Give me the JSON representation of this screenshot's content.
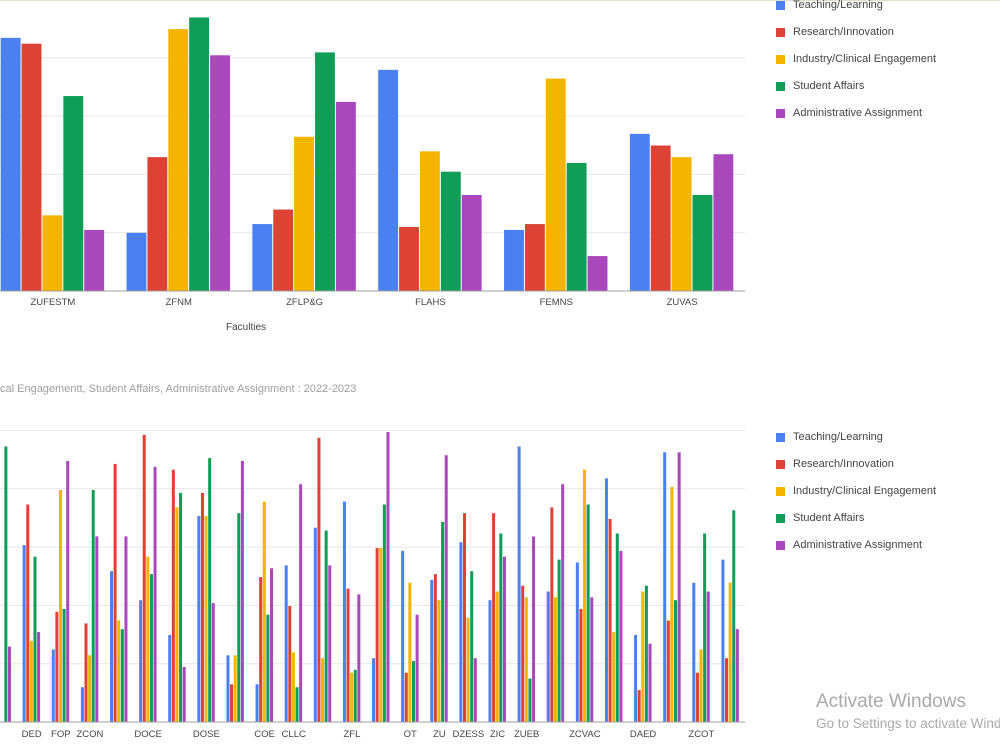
{
  "chart_data": [
    {
      "type": "bar",
      "title": "",
      "xlabel": "Faculties",
      "ylabel": "",
      "ylim": [
        0,
        100
      ],
      "grid": true,
      "legend_position": "right",
      "colors": [
        "#4a80f0",
        "#dc4335",
        "#f4b400",
        "#0f9d58",
        "#ab47bc"
      ],
      "categories": [
        "ZUFESTM",
        "ZFNM",
        "ZFLP&G",
        "FLAHS",
        "FEMNS",
        "ZUVAS"
      ],
      "series": [
        {
          "name": "Teaching/Learning",
          "values": [
            87,
            20,
            23,
            76,
            21,
            54
          ]
        },
        {
          "name": "Research/Innovation",
          "values": [
            85,
            46,
            28,
            22,
            23,
            50
          ]
        },
        {
          "name": "Industry/Clinical Engagement",
          "values": [
            26,
            90,
            53,
            48,
            73,
            46
          ]
        },
        {
          "name": "Student Affairs",
          "values": [
            67,
            94,
            82,
            41,
            44,
            33
          ]
        },
        {
          "name": "Administrative Assignment",
          "values": [
            21,
            81,
            65,
            33,
            12,
            47
          ]
        }
      ]
    },
    {
      "type": "bar",
      "title": "cal Engagementt, Student Affairs, Administrative Assignment : 2022-2023",
      "xlabel": "",
      "ylabel": "",
      "ylim": [
        0,
        100
      ],
      "grid": true,
      "legend_position": "right",
      "colors": [
        "#4a80f0",
        "#dc4335",
        "#f4b400",
        "#0f9d58",
        "#ab47bc"
      ],
      "categories": [
        "",
        "DED",
        "FOP",
        "ZCON",
        "",
        "DOCE",
        "",
        "DOSE",
        "",
        "COE",
        "CLLC",
        "",
        "ZFL",
        "",
        "OT",
        "ZU",
        "DZESS",
        "ZIC",
        "ZUEB",
        "",
        "ZCVAC",
        "",
        "DAED",
        "",
        "ZCOT",
        ""
      ],
      "series": [
        {
          "name": "Teaching/Learning",
          "values": [
            0,
            61,
            25,
            12,
            52,
            42,
            30,
            71,
            23,
            13,
            54,
            67,
            76,
            22,
            59,
            49,
            62,
            42,
            95,
            45,
            55,
            84,
            30,
            93,
            48,
            56
          ]
        },
        {
          "name": "Research/Innovation",
          "values": [
            0,
            75,
            38,
            34,
            89,
            99,
            87,
            79,
            13,
            50,
            40,
            98,
            46,
            60,
            17,
            51,
            72,
            72,
            47,
            74,
            39,
            70,
            11,
            35,
            17,
            22
          ]
        },
        {
          "name": "Industry/Clinical Engagement",
          "values": [
            0,
            28,
            80,
            23,
            35,
            57,
            74,
            71,
            23,
            76,
            24,
            22,
            17,
            60,
            48,
            42,
            36,
            45,
            43,
            43,
            87,
            31,
            45,
            81,
            25,
            48
          ]
        },
        {
          "name": "Student Affairs",
          "values": [
            95,
            57,
            39,
            80,
            32,
            51,
            79,
            91,
            72,
            37,
            12,
            66,
            18,
            75,
            21,
            69,
            52,
            65,
            15,
            56,
            75,
            65,
            47,
            42,
            65,
            73
          ]
        },
        {
          "name": "Administrative Assignment",
          "values": [
            26,
            31,
            90,
            64,
            64,
            88,
            19,
            41,
            90,
            53,
            82,
            54,
            44,
            100,
            37,
            92,
            22,
            57,
            64,
            82,
            43,
            59,
            27,
            93,
            45,
            32
          ]
        }
      ]
    }
  ],
  "watermark": {
    "title": "Activate Windows",
    "subtitle": "Go to Settings to activate Windows."
  }
}
